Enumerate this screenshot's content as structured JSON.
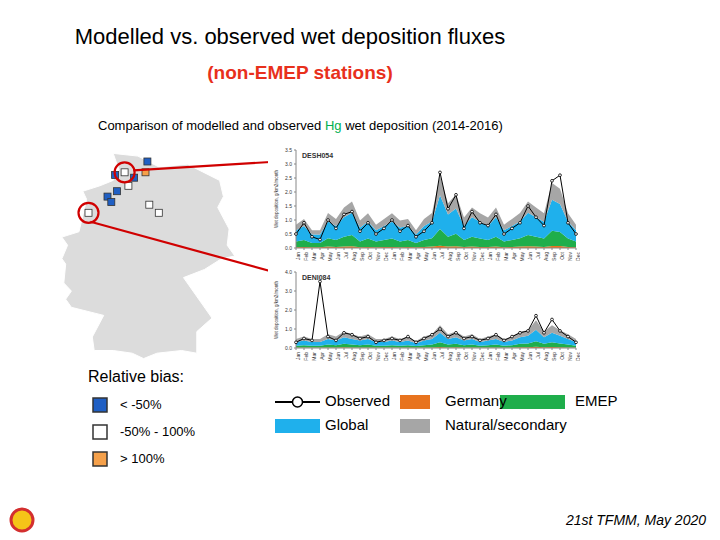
{
  "slide": {
    "title": "Modelled vs. observed wet deposition fluxes",
    "subtitle": {
      "text": "(non-EMEP stations)",
      "color": "#e8301c"
    },
    "caption": [
      {
        "text": "Comparison of modelled and observed "
      },
      {
        "text": "Hg",
        "color": "#00b050"
      },
      {
        "text": " wet deposition (2014-2016)"
      }
    ],
    "bias_legend": {
      "title": "Relative bias:",
      "classes": [
        {
          "label": "< -50%",
          "color": "#1f5fc4"
        },
        {
          "label": "-50% - 100%",
          "color": "#ffffff"
        },
        {
          "label": "> 100%",
          "color": "#f5a04a"
        }
      ]
    },
    "stations": [
      {
        "id": "DESH054",
        "lon": 9.2,
        "lat": 54.2,
        "class": 1
      },
      {
        "id": "DENI084",
        "lon": 7.3,
        "lat": 52.7,
        "class": 1
      },
      {
        "lon": 8.7,
        "lat": 54.1,
        "class": 0
      },
      {
        "lon": 8.8,
        "lat": 53.5,
        "class": 0
      },
      {
        "lon": 9.4,
        "lat": 53.7,
        "class": 1
      },
      {
        "lon": 9.7,
        "lat": 54.0,
        "class": 0
      },
      {
        "lon": 10.3,
        "lat": 54.2,
        "class": 2
      },
      {
        "lon": 10.4,
        "lat": 54.6,
        "class": 0
      },
      {
        "lon": 8.3,
        "lat": 53.3,
        "class": 0
      },
      {
        "lon": 8.5,
        "lat": 53.1,
        "class": 0
      },
      {
        "lon": 10.5,
        "lat": 53.0,
        "class": 1
      },
      {
        "lon": 11.0,
        "lat": 52.7,
        "class": 1
      }
    ],
    "footer": "21st TFMM, May 2020"
  },
  "chart_data": [
    {
      "type": "area",
      "title": "DESH054",
      "y_label": "Wet deposition, g/km2/month",
      "stacked": true,
      "grid": false,
      "categories": [
        "Jan",
        "Feb",
        "Mar",
        "Apr",
        "May",
        "Jun",
        "Jul",
        "Aug",
        "Sep",
        "Oct",
        "Nov",
        "Dec",
        "Jan",
        "Feb",
        "Mar",
        "Apr",
        "May",
        "Jun",
        "Jul",
        "Aug",
        "Sep",
        "Oct",
        "Nov",
        "Dec",
        "Jan",
        "Feb",
        "Mar",
        "Apr",
        "May",
        "Jun",
        "Jul",
        "Aug",
        "Sep",
        "Oct",
        "Nov",
        "Dec"
      ],
      "ylim": [
        0,
        3.5
      ],
      "yticks": [
        {
          "value": 0,
          "label": "0.0"
        },
        0.5,
        {
          "value": 1,
          "label": "1.0"
        },
        1.5,
        {
          "value": 2,
          "label": "2.0"
        },
        2.5,
        {
          "value": 3,
          "label": "3.0"
        },
        3.5
      ],
      "series": [
        {
          "name": "Germany",
          "type": "area",
          "color": "#e8731e",
          "values": [
            0.03,
            0.04,
            0.03,
            0.03,
            0.05,
            0.04,
            0.05,
            0.06,
            0.03,
            0.04,
            0.03,
            0.04,
            0.04,
            0.03,
            0.04,
            0.03,
            0.04,
            0.05,
            0.08,
            0.05,
            0.06,
            0.04,
            0.05,
            0.04,
            0.04,
            0.05,
            0.03,
            0.04,
            0.05,
            0.06,
            0.05,
            0.04,
            0.07,
            0.07,
            0.04,
            0.03
          ]
        },
        {
          "name": "EMEP",
          "type": "area",
          "color": "#1fae4b",
          "values": [
            0.2,
            0.25,
            0.15,
            0.15,
            0.3,
            0.25,
            0.35,
            0.4,
            0.2,
            0.3,
            0.2,
            0.25,
            0.3,
            0.2,
            0.25,
            0.15,
            0.25,
            0.3,
            0.6,
            0.35,
            0.45,
            0.25,
            0.35,
            0.3,
            0.25,
            0.35,
            0.2,
            0.25,
            0.3,
            0.4,
            0.35,
            0.3,
            0.55,
            0.5,
            0.3,
            0.2
          ]
        },
        {
          "name": "Global",
          "type": "area",
          "color": "#1fb0ec",
          "values": [
            0.4,
            0.5,
            0.3,
            0.3,
            0.6,
            0.5,
            0.7,
            0.8,
            0.5,
            0.6,
            0.4,
            0.5,
            0.6,
            0.5,
            0.5,
            0.3,
            0.5,
            0.6,
            1.2,
            0.8,
            0.9,
            0.5,
            0.7,
            0.6,
            0.5,
            0.7,
            0.4,
            0.5,
            0.6,
            0.8,
            0.7,
            0.6,
            1.1,
            1.0,
            0.6,
            0.4
          ]
        },
        {
          "name": "Natural/secondary",
          "type": "area",
          "color": "#a6a6a6",
          "values": [
            0.2,
            0.25,
            0.15,
            0.15,
            0.3,
            0.25,
            0.35,
            0.4,
            0.25,
            0.3,
            0.2,
            0.25,
            0.3,
            0.25,
            0.25,
            0.15,
            0.25,
            0.3,
            0.7,
            0.4,
            0.5,
            0.3,
            0.35,
            0.3,
            0.3,
            0.35,
            0.2,
            0.25,
            0.3,
            0.4,
            0.35,
            0.3,
            0.6,
            0.55,
            0.3,
            0.2
          ]
        },
        {
          "name": "Observed",
          "type": "line",
          "marker": "circle",
          "color": "#000000",
          "values": [
            0.5,
            0.9,
            0.4,
            0.3,
            1.0,
            0.7,
            1.2,
            1.3,
            0.6,
            0.9,
            0.5,
            0.7,
            1.0,
            0.6,
            0.8,
            0.4,
            0.6,
            0.9,
            2.7,
            1.4,
            1.9,
            0.7,
            1.3,
            0.9,
            0.8,
            1.2,
            0.5,
            0.7,
            0.9,
            1.5,
            1.1,
            0.8,
            2.4,
            2.6,
            0.9,
            0.5
          ]
        }
      ]
    },
    {
      "type": "area",
      "title": "DENI084",
      "y_label": "Wet deposition, g/km2/month",
      "stacked": true,
      "grid": false,
      "categories": [
        "Jan",
        "Feb",
        "Mar",
        "Apr",
        "May",
        "Jun",
        "Jul",
        "Aug",
        "Sep",
        "Oct",
        "Nov",
        "Dec",
        "Jan",
        "Feb",
        "Mar",
        "Apr",
        "May",
        "Jun",
        "Jul",
        "Aug",
        "Sep",
        "Oct",
        "Nov",
        "Dec",
        "Jan",
        "Feb",
        "Mar",
        "Apr",
        "May",
        "Jun",
        "Jul",
        "Aug",
        "Sep",
        "Oct",
        "Nov",
        "Dec"
      ],
      "ylim": [
        0,
        4
      ],
      "yticks": [
        {
          "value": 0,
          "label": "0.0"
        },
        {
          "value": 1,
          "label": "1.0"
        },
        {
          "value": 2,
          "label": "2.0"
        },
        {
          "value": 3,
          "label": "3.0"
        },
        {
          "value": 4,
          "label": "4.0"
        }
      ],
      "series": [
        {
          "name": "Germany",
          "type": "area",
          "color": "#e8731e",
          "values": [
            0.02,
            0.03,
            0.02,
            0.02,
            0.03,
            0.03,
            0.04,
            0.03,
            0.03,
            0.03,
            0.02,
            0.02,
            0.03,
            0.02,
            0.03,
            0.02,
            0.03,
            0.03,
            0.05,
            0.03,
            0.04,
            0.03,
            0.03,
            0.02,
            0.03,
            0.03,
            0.02,
            0.03,
            0.04,
            0.04,
            0.06,
            0.04,
            0.05,
            0.04,
            0.03,
            0.02
          ]
        },
        {
          "name": "EMEP",
          "type": "area",
          "color": "#1fae4b",
          "values": [
            0.1,
            0.12,
            0.1,
            0.1,
            0.15,
            0.12,
            0.18,
            0.15,
            0.12,
            0.15,
            0.1,
            0.1,
            0.12,
            0.1,
            0.12,
            0.08,
            0.12,
            0.15,
            0.25,
            0.15,
            0.18,
            0.12,
            0.15,
            0.1,
            0.12,
            0.15,
            0.1,
            0.12,
            0.18,
            0.2,
            0.3,
            0.18,
            0.25,
            0.2,
            0.15,
            0.1
          ]
        },
        {
          "name": "Global",
          "type": "area",
          "color": "#1fb0ec",
          "values": [
            0.2,
            0.25,
            0.2,
            0.2,
            0.3,
            0.25,
            0.35,
            0.3,
            0.25,
            0.3,
            0.2,
            0.2,
            0.25,
            0.2,
            0.25,
            0.15,
            0.25,
            0.3,
            0.5,
            0.3,
            0.35,
            0.25,
            0.3,
            0.2,
            0.25,
            0.3,
            0.2,
            0.25,
            0.35,
            0.4,
            0.6,
            0.35,
            0.5,
            0.4,
            0.3,
            0.2
          ]
        },
        {
          "name": "Natural/secondary",
          "type": "area",
          "color": "#a6a6a6",
          "values": [
            0.15,
            0.2,
            0.15,
            0.15,
            0.25,
            0.2,
            0.3,
            0.25,
            0.2,
            0.25,
            0.15,
            0.15,
            0.2,
            0.15,
            0.2,
            0.12,
            0.2,
            0.25,
            0.4,
            0.25,
            0.3,
            0.2,
            0.25,
            0.15,
            0.2,
            0.25,
            0.15,
            0.2,
            0.3,
            0.3,
            0.5,
            0.3,
            0.4,
            0.3,
            0.25,
            0.15
          ]
        },
        {
          "name": "Observed",
          "type": "line",
          "marker": "circle",
          "color": "#000000",
          "values": [
            0.3,
            0.5,
            0.4,
            3.5,
            0.6,
            0.4,
            0.8,
            0.7,
            0.5,
            0.6,
            0.3,
            0.4,
            0.5,
            0.4,
            0.6,
            0.3,
            0.5,
            0.7,
            1.0,
            0.6,
            0.8,
            0.5,
            0.6,
            0.4,
            0.5,
            0.7,
            0.4,
            0.6,
            0.8,
            0.9,
            1.7,
            0.8,
            1.5,
            0.9,
            0.6,
            0.3
          ]
        }
      ]
    }
  ]
}
